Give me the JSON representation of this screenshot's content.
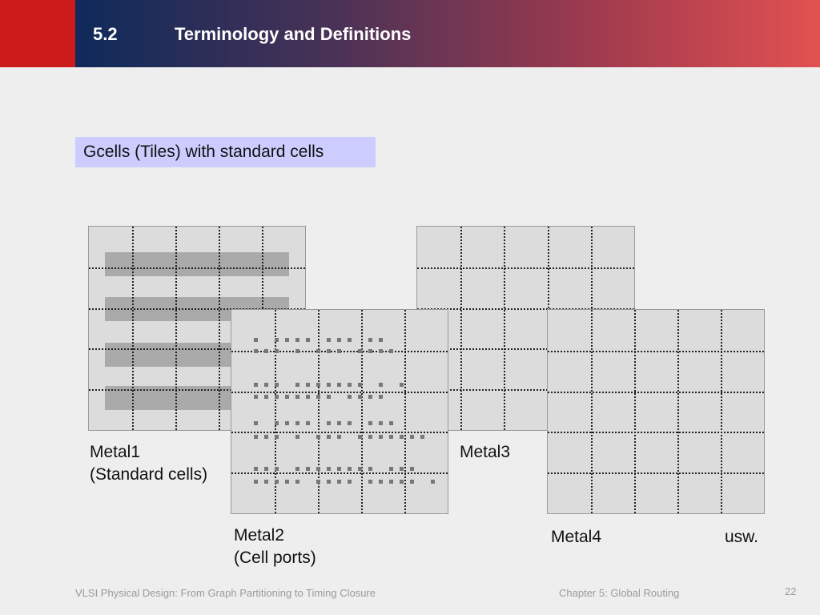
{
  "header": {
    "section_number": "5.2",
    "title": "Terminology and Definitions"
  },
  "subtitle": "Gcells (Tiles) with standard cells",
  "layers": [
    {
      "label_line1": "Metal1",
      "label_line2": "(Standard cells)"
    },
    {
      "label_line1": "Metal2",
      "label_line2": "(Cell ports)"
    },
    {
      "label_line1": "Metal3",
      "label_line2": ""
    },
    {
      "label_line1": "Metal4",
      "label_line2": ""
    }
  ],
  "etc_label": "usw.",
  "footer": {
    "left": "VLSI Physical Design: From Graph Partitioning to Timing Closure",
    "center": "Chapter 5: Global Routing",
    "page": "22"
  },
  "colors": {
    "header_red": "#cc1b1b",
    "header_gradient_start": "#0e2a5a",
    "header_gradient_end": "#e25151",
    "subtitle_bg": "#ccccff",
    "gcell_fill": "#dcdcdc",
    "cell_row": "#aaaaaa",
    "pin": "#777777"
  }
}
